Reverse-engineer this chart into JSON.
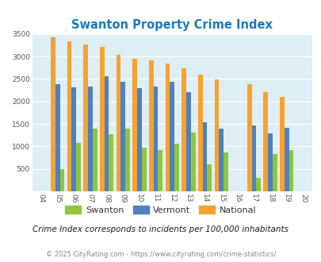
{
  "title": "Swanton Property Crime Index",
  "years": [
    2004,
    2005,
    2006,
    2007,
    2008,
    2009,
    2010,
    2011,
    2012,
    2013,
    2014,
    2015,
    2016,
    2017,
    2018,
    2019,
    2020
  ],
  "swanton": [
    0,
    490,
    1070,
    1400,
    1270,
    1400,
    970,
    920,
    1060,
    1300,
    600,
    870,
    0,
    300,
    830,
    910,
    0
  ],
  "vermont": [
    0,
    2380,
    2310,
    2340,
    2560,
    2440,
    2290,
    2340,
    2440,
    2200,
    1530,
    1400,
    0,
    1460,
    1290,
    1420,
    0
  ],
  "national": [
    0,
    3420,
    3340,
    3260,
    3210,
    3040,
    2950,
    2910,
    2850,
    2730,
    2590,
    2490,
    0,
    2380,
    2200,
    2110,
    0
  ],
  "swanton_color": "#8dc63f",
  "vermont_color": "#4f81bd",
  "national_color": "#f9a12e",
  "plot_bg": "#ddeef4",
  "ylim": [
    0,
    3500
  ],
  "yticks": [
    0,
    500,
    1000,
    1500,
    2000,
    2500,
    3000,
    3500
  ],
  "footnote1": "Crime Index corresponds to incidents per 100,000 inhabitants",
  "footnote2": "© 2025 CityRating.com - https://www.cityrating.com/crime-statistics/",
  "legend_labels": [
    "Swanton",
    "Vermont",
    "National"
  ],
  "title_color": "#1a7abf",
  "tick_color": "#555555",
  "footnote1_color": "#1a1a2e",
  "footnote2_color": "#888888"
}
